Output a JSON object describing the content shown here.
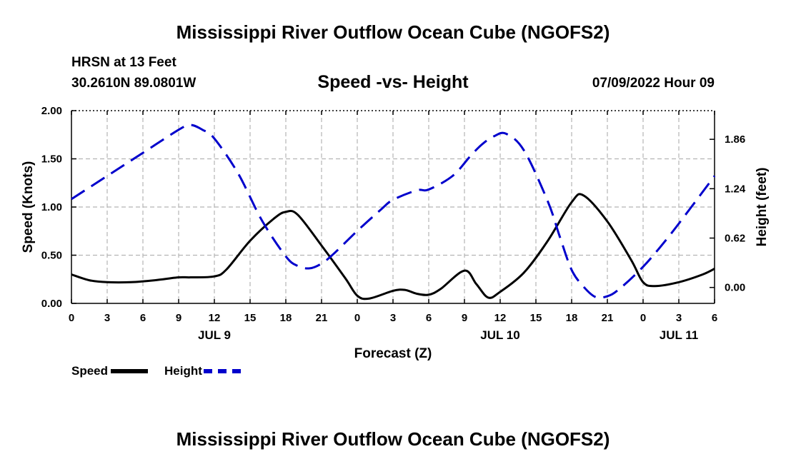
{
  "header": {
    "title": "Mississippi River Outflow Ocean Cube (NGOFS2)",
    "title_repeat": "Mississippi River Outflow Ocean Cube (NGOFS2)",
    "station": "HRSN at 13 Feet",
    "coordinates": "30.2610N  89.0801W",
    "subtitle": "Speed -vs- Height",
    "datetime": "07/09/2022 Hour 09"
  },
  "legend": {
    "speed_label": "Speed",
    "height_label": "Height"
  },
  "colors": {
    "speed": "#000000",
    "height": "#0000cc",
    "grid": "#b4b4b4"
  },
  "chart_data": {
    "type": "line",
    "title": "Speed -vs- Height",
    "xlabel": "Forecast (Z)",
    "ylabel_left": "Speed (Knots)",
    "ylabel_right": "Height (feet)",
    "x_range_hours": [
      0,
      54
    ],
    "x_ticks": [
      {
        "h": 0,
        "label": "0"
      },
      {
        "h": 3,
        "label": "3"
      },
      {
        "h": 6,
        "label": "6"
      },
      {
        "h": 9,
        "label": "9"
      },
      {
        "h": 12,
        "label": "12"
      },
      {
        "h": 15,
        "label": "15"
      },
      {
        "h": 18,
        "label": "18"
      },
      {
        "h": 21,
        "label": "21"
      },
      {
        "h": 24,
        "label": "0"
      },
      {
        "h": 27,
        "label": "3"
      },
      {
        "h": 30,
        "label": "6"
      },
      {
        "h": 33,
        "label": "9"
      },
      {
        "h": 36,
        "label": "12"
      },
      {
        "h": 39,
        "label": "15"
      },
      {
        "h": 42,
        "label": "18"
      },
      {
        "h": 45,
        "label": "21"
      },
      {
        "h": 48,
        "label": "0"
      },
      {
        "h": 51,
        "label": "3"
      },
      {
        "h": 54,
        "label": "6"
      }
    ],
    "date_labels": [
      {
        "h": 12,
        "label": "JUL 9"
      },
      {
        "h": 36,
        "label": "JUL 10"
      },
      {
        "h": 51,
        "label": "JUL 11"
      }
    ],
    "left_axis": {
      "range": [
        0,
        2.0
      ],
      "ticks": [
        0,
        0.5,
        1.0,
        1.5,
        2.0
      ],
      "tick_labels": [
        "0.00",
        "0.50",
        "1.00",
        "1.50",
        "2.00"
      ]
    },
    "right_axis": {
      "range": [
        -0.2,
        2.22
      ],
      "ticks": [
        0,
        0.62,
        1.24,
        1.86
      ],
      "tick_labels": [
        "0.00",
        "0.62",
        "1.24",
        "1.86"
      ]
    },
    "series": [
      {
        "name": "Speed",
        "axis": "left",
        "style": "solid",
        "hours": [
          0,
          1.5,
          3,
          5,
          7,
          9,
          10,
          12,
          13,
          15,
          17,
          18,
          19,
          21,
          23,
          24,
          25,
          27,
          28,
          29,
          30,
          31,
          33,
          34,
          35,
          36,
          38,
          40,
          42,
          43,
          45,
          47,
          48,
          49,
          51,
          53,
          54
        ],
        "values": [
          0.3,
          0.24,
          0.22,
          0.22,
          0.24,
          0.27,
          0.27,
          0.28,
          0.35,
          0.65,
          0.88,
          0.95,
          0.92,
          0.6,
          0.26,
          0.08,
          0.05,
          0.13,
          0.14,
          0.1,
          0.09,
          0.15,
          0.34,
          0.2,
          0.06,
          0.12,
          0.32,
          0.65,
          1.05,
          1.12,
          0.85,
          0.45,
          0.22,
          0.18,
          0.22,
          0.3,
          0.36
        ]
      },
      {
        "name": "Height",
        "axis": "right",
        "style": "dashed",
        "hours": [
          0,
          3,
          6,
          9,
          10,
          11,
          12,
          14,
          16,
          18,
          19,
          20,
          21,
          22,
          24,
          26,
          27,
          29,
          30,
          32,
          33.5,
          34.5,
          35.5,
          36.5,
          38,
          40,
          41,
          42,
          43,
          44,
          45,
          46,
          48,
          50,
          52,
          54
        ],
        "values": [
          1.11,
          1.4,
          1.69,
          1.98,
          2.04,
          1.98,
          1.87,
          1.43,
          0.84,
          0.39,
          0.27,
          0.24,
          0.3,
          0.42,
          0.71,
          0.98,
          1.1,
          1.22,
          1.23,
          1.4,
          1.65,
          1.8,
          1.9,
          1.93,
          1.72,
          1.08,
          0.64,
          0.22,
          0.01,
          -0.12,
          -0.11,
          -0.02,
          0.26,
          0.61,
          1.0,
          1.4
        ]
      }
    ]
  }
}
